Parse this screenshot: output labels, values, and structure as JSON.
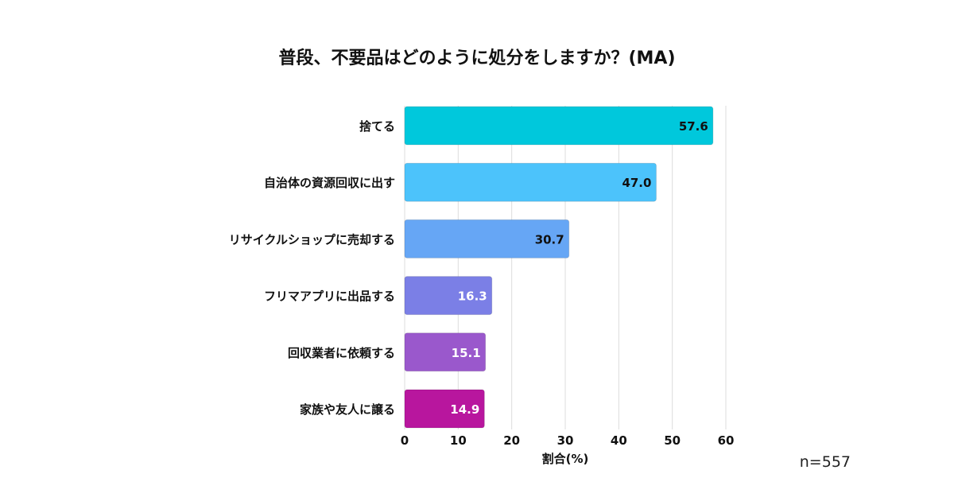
{
  "chart_data": {
    "type": "bar",
    "orientation": "horizontal",
    "title": "普段、不要品はどのように処分をしますか？(MA)",
    "categories": [
      "捨てる",
      "自治体の資源回収に出す",
      "リサイクルショップに売却する",
      "フリマアプリに出品する",
      "回収業者に依頼する",
      "家族や友人に譲る"
    ],
    "values": [
      57.6,
      47.0,
      30.7,
      16.3,
      15.1,
      14.9
    ],
    "value_labels": [
      "57.6",
      "47.0",
      "30.7",
      "16.3",
      "15.1",
      "14.9"
    ],
    "bar_colors": [
      "#00c8dc",
      "#4cc3fb",
      "#66a6f5",
      "#7b7fe6",
      "#9a58cc",
      "#b8169e"
    ],
    "value_label_colors": [
      "#111111",
      "#111111",
      "#111111",
      "#ffffff",
      "#ffffff",
      "#ffffff"
    ],
    "xlabel": "割合(%)",
    "ylabel": "",
    "xlim": [
      0,
      60
    ],
    "xticks": [
      0,
      10,
      20,
      30,
      40,
      50,
      60
    ],
    "xtick_labels": [
      "0",
      "10",
      "20",
      "30",
      "40",
      "50",
      "60"
    ],
    "grid": true,
    "legend": "none",
    "annotation": "n=557"
  }
}
